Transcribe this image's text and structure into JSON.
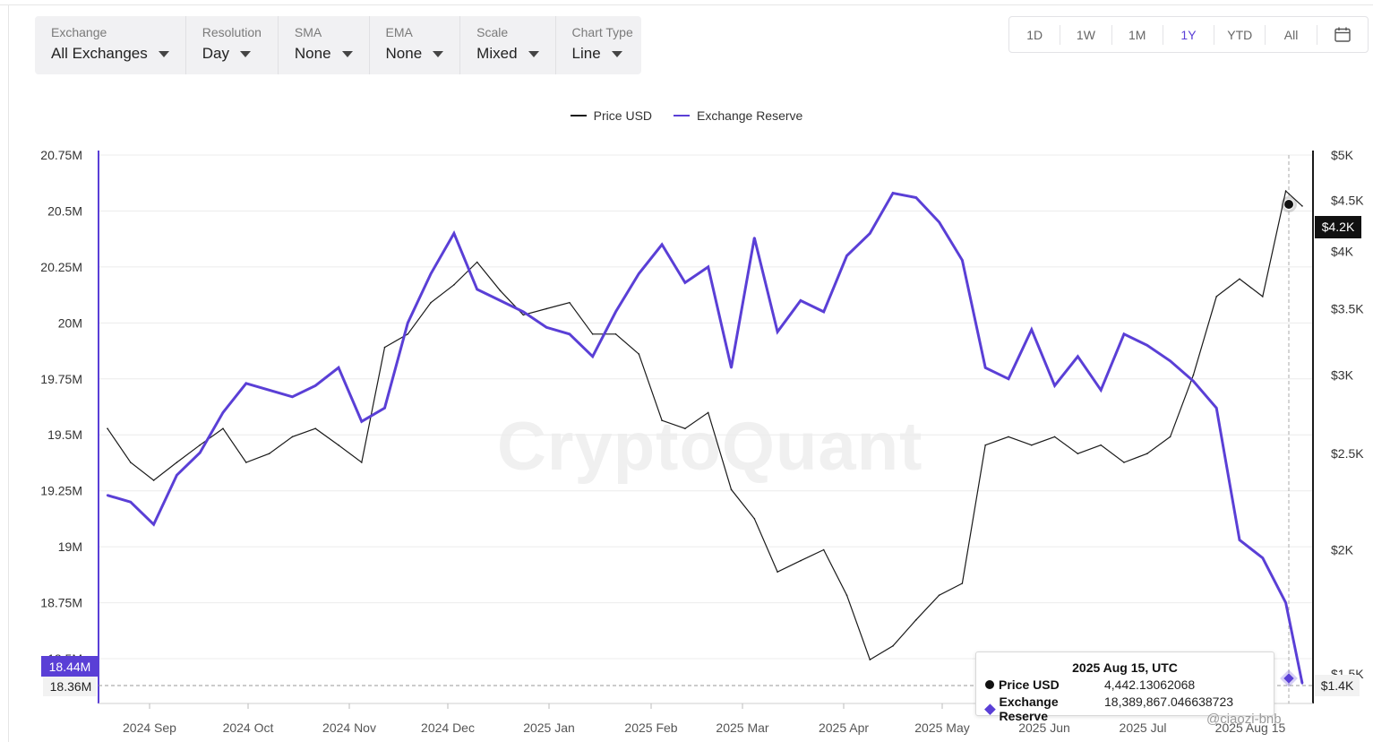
{
  "controls": [
    {
      "label": "Exchange",
      "value": "All Exchanges"
    },
    {
      "label": "Resolution",
      "value": "Day"
    },
    {
      "label": "SMA",
      "value": "None"
    },
    {
      "label": "EMA",
      "value": "None"
    },
    {
      "label": "Scale",
      "value": "Mixed"
    },
    {
      "label": "Chart Type",
      "value": "Line"
    }
  ],
  "ranges": [
    "1D",
    "1W",
    "1M",
    "1Y",
    "YTD",
    "All"
  ],
  "active_range": "1Y",
  "watermark": "CryptoQuant",
  "tooltip": {
    "date": "2025 Aug 15, UTC",
    "price_label": "Price USD",
    "price_value": "4,442.13062068",
    "reserve_label": "Exchange Reserve",
    "reserve_value": "18,389,867.046638723"
  },
  "current_left_badge": "18.44M",
  "current_left_secondary": "18.36M",
  "current_right_badge": "$4.2K",
  "current_right_secondary": "$1.4K",
  "credit": "@ciaozi-bnb",
  "colors": {
    "reserve": "#5a3fd6",
    "price": "#1a1a1a",
    "accent": "#5a3fd6"
  },
  "chart_data": {
    "type": "line",
    "legend": [
      "Price USD",
      "Exchange Reserve"
    ],
    "legend_position": "top-center",
    "grid": true,
    "x_ticks": [
      "2024 Sep",
      "2024 Oct",
      "2024 Nov",
      "2024 Dec",
      "2025 Jan",
      "2025 Feb",
      "2025 Mar",
      "2025 Apr",
      "2025 May",
      "2025 Jun",
      "2025 Jul",
      "2025 Aug 15"
    ],
    "y_left_ticks": [
      "20.75M",
      "20.5M",
      "20.25M",
      "20M",
      "19.75M",
      "19.5M",
      "19.25M",
      "19M",
      "18.75M",
      "18.5M"
    ],
    "y_left_range": [
      18.3,
      20.75
    ],
    "y_right_ticks": [
      "$5K",
      "$4.5K",
      "$4K",
      "$3.5K",
      "$3K",
      "$2.5K",
      "$2K",
      "$1.5K"
    ],
    "y_right_ticks_values": [
      5000,
      4500,
      4000,
      3500,
      3000,
      2500,
      2000,
      1500
    ],
    "y_right_scale": "log",
    "y_right_range": [
      1400,
      5000
    ],
    "x": [
      "2024-08-18",
      "2024-08-25",
      "2024-09-01",
      "2024-09-08",
      "2024-09-15",
      "2024-09-22",
      "2024-09-29",
      "2024-10-06",
      "2024-10-13",
      "2024-10-20",
      "2024-10-27",
      "2024-11-03",
      "2024-11-10",
      "2024-11-17",
      "2024-11-24",
      "2024-12-01",
      "2024-12-08",
      "2024-12-15",
      "2024-12-22",
      "2024-12-29",
      "2025-01-05",
      "2025-01-12",
      "2025-01-19",
      "2025-01-26",
      "2025-02-02",
      "2025-02-09",
      "2025-02-16",
      "2025-02-23",
      "2025-03-02",
      "2025-03-09",
      "2025-03-16",
      "2025-03-23",
      "2025-03-30",
      "2025-04-06",
      "2025-04-13",
      "2025-04-20",
      "2025-04-27",
      "2025-05-04",
      "2025-05-11",
      "2025-05-18",
      "2025-05-25",
      "2025-06-01",
      "2025-06-08",
      "2025-06-15",
      "2025-06-22",
      "2025-06-29",
      "2025-07-06",
      "2025-07-13",
      "2025-07-20",
      "2025-07-27",
      "2025-08-03",
      "2025-08-10",
      "2025-08-15"
    ],
    "series": [
      {
        "name": "Exchange Reserve",
        "values": [
          19.23,
          19.2,
          19.1,
          19.32,
          19.42,
          19.6,
          19.73,
          19.7,
          19.67,
          19.72,
          19.8,
          19.56,
          19.62,
          20.0,
          20.22,
          20.4,
          20.15,
          20.1,
          20.05,
          19.98,
          19.95,
          19.85,
          20.05,
          20.22,
          20.35,
          20.18,
          20.25,
          19.8,
          20.38,
          19.96,
          20.1,
          20.05,
          20.3,
          20.4,
          20.58,
          20.56,
          20.45,
          20.28,
          19.8,
          19.75,
          19.97,
          19.72,
          19.85,
          19.7,
          19.95,
          19.9,
          19.83,
          19.74,
          19.62,
          19.03,
          18.95,
          18.75,
          18.39
        ]
      },
      {
        "name": "Price USD",
        "values": [
          2650,
          2450,
          2350,
          2450,
          2550,
          2650,
          2450,
          2500,
          2600,
          2650,
          2550,
          2450,
          3200,
          3300,
          3550,
          3700,
          3900,
          3650,
          3450,
          3500,
          3550,
          3300,
          3300,
          3150,
          2700,
          2650,
          2750,
          2300,
          2150,
          1900,
          1950,
          2000,
          1800,
          1550,
          1600,
          1700,
          1800,
          1850,
          2550,
          2600,
          2550,
          2600,
          2500,
          2550,
          2450,
          2500,
          2600,
          3000,
          3600,
          3750,
          3600,
          4600,
          4442
        ]
      }
    ]
  }
}
